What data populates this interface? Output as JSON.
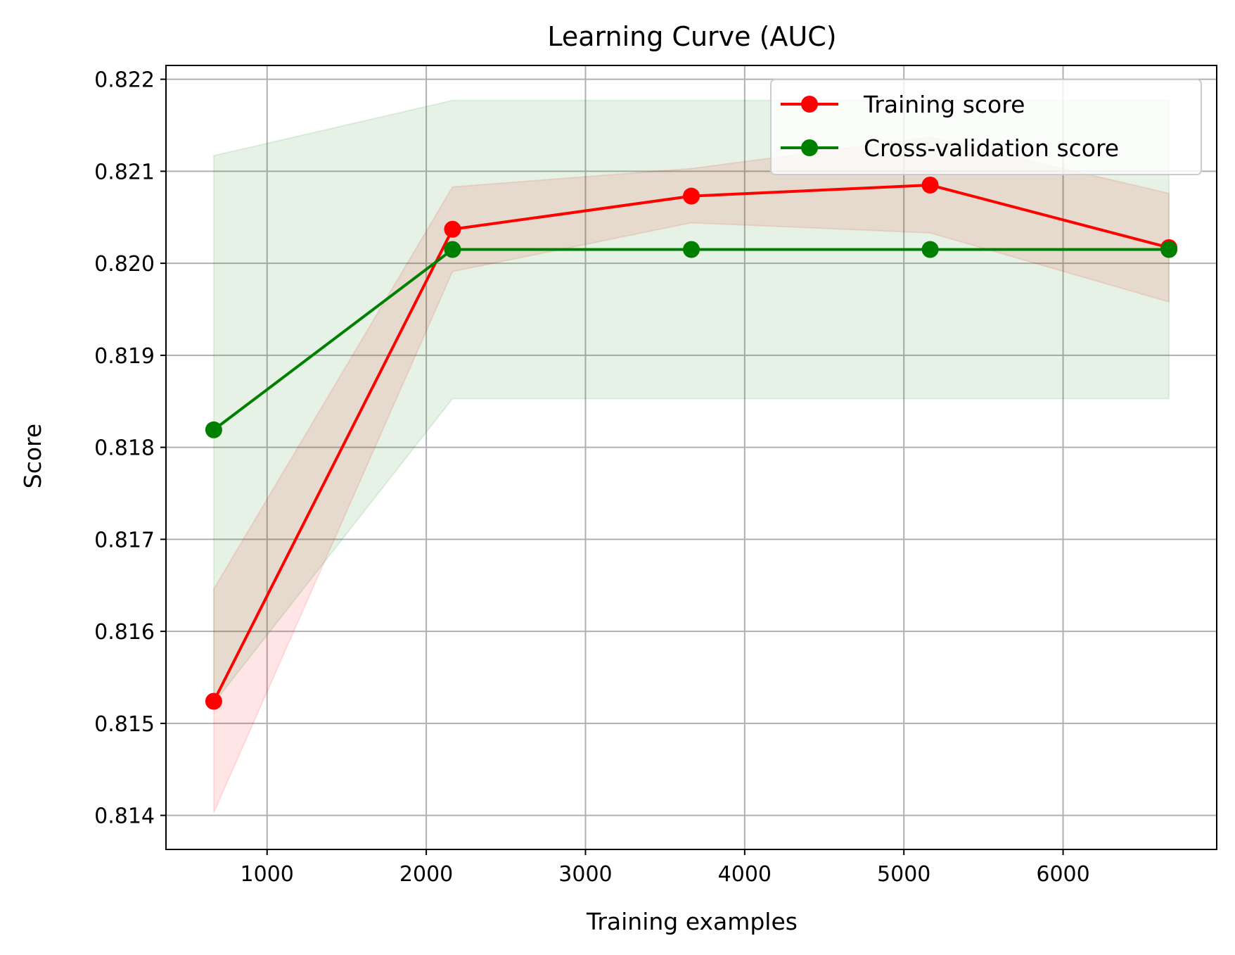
{
  "chart_data": {
    "type": "line",
    "title": "Learning Curve (AUC)",
    "xlabel": "Training examples",
    "ylabel": "Score",
    "xlim": [
      365,
      6965
    ],
    "ylim": [
      0.81363,
      0.82215
    ],
    "xticks": [
      1000,
      2000,
      3000,
      4000,
      5000,
      6000
    ],
    "yticks": [
      0.814,
      0.815,
      0.816,
      0.817,
      0.818,
      0.819,
      0.82,
      0.821,
      0.822
    ],
    "x": [
      665,
      2165,
      3665,
      5165,
      6665
    ],
    "grid": true,
    "legend_position": "upper right",
    "series": [
      {
        "name": "Training score",
        "color": "#ff0000",
        "values": [
          0.81524,
          0.82037,
          0.82073,
          0.82085,
          0.82017
        ],
        "band_lower": [
          0.81403,
          0.81991,
          0.82044,
          0.82033,
          0.81958
        ],
        "band_upper": [
          0.81646,
          0.82083,
          0.82103,
          0.82137,
          0.82076
        ]
      },
      {
        "name": "Cross-validation score",
        "color": "#008000",
        "values": [
          0.81819,
          0.82015,
          0.82015,
          0.82015,
          0.82015
        ],
        "band_lower": [
          0.81522,
          0.81853,
          0.81853,
          0.81853,
          0.81853
        ],
        "band_upper": [
          0.82117,
          0.82177,
          0.82177,
          0.82177,
          0.82177
        ]
      }
    ]
  }
}
